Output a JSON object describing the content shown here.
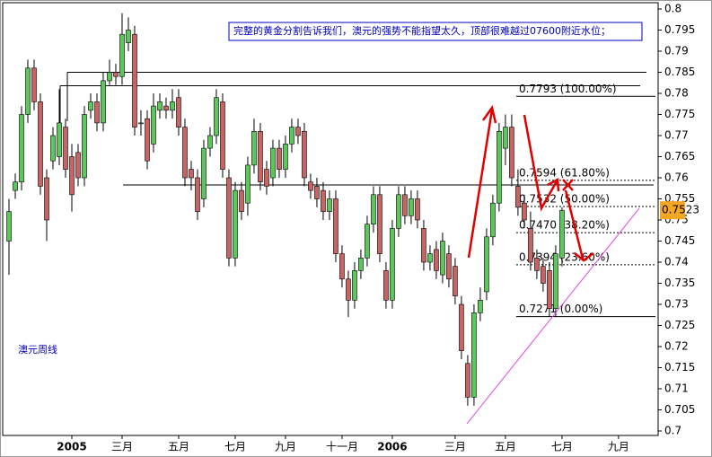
{
  "chart_data": {
    "type": "candlestick",
    "annotation": "完整的黄金分割告诉我们，澳元的强势不能指望太久，顶部很难越过07600附近水位；",
    "label": "澳元周线",
    "up_color": "#5cc85c",
    "down_color": "#c86464",
    "open": [
      0.745,
      0.757,
      0.759,
      0.775,
      0.786,
      0.778,
      0.76,
      0.764,
      0.765,
      0.772,
      0.765,
      0.766,
      0.76,
      0.776,
      0.778,
      0.773,
      0.783,
      0.785,
      0.784,
      0.792,
      0.794,
      0.773,
      0.774,
      0.768,
      0.776,
      0.777,
      0.776,
      0.779,
      0.772,
      0.762,
      0.76,
      0.755,
      0.767,
      0.77,
      0.778,
      0.76,
      0.741,
      0.757,
      0.754,
      0.763,
      0.771,
      0.762,
      0.76,
      0.767,
      0.762,
      0.768,
      0.772,
      0.771,
      0.759,
      0.758,
      0.757,
      0.752,
      0.755,
      0.742,
      0.736,
      0.731,
      0.738,
      0.741,
      0.749,
      0.756,
      0.738,
      0.731,
      0.748,
      0.756,
      0.751,
      0.755,
      0.748,
      0.74,
      0.743,
      0.737,
      0.742,
      0.739,
      0.73,
      0.716,
      0.708,
      0.728,
      0.733,
      0.746,
      0.754,
      0.767,
      0.772,
      0.758,
      0.754,
      0.748,
      0.741,
      0.739,
      0.738,
      0.729,
      0.741
    ],
    "high": [
      0.755,
      0.761,
      0.777,
      0.788,
      0.788,
      0.78,
      0.762,
      0.772,
      0.781,
      0.774,
      0.768,
      0.768,
      0.777,
      0.78,
      0.78,
      0.785,
      0.788,
      0.787,
      0.799,
      0.798,
      0.796,
      0.776,
      0.776,
      0.78,
      0.78,
      0.779,
      0.781,
      0.781,
      0.774,
      0.764,
      0.762,
      0.769,
      0.772,
      0.781,
      0.78,
      0.762,
      0.759,
      0.759,
      0.765,
      0.774,
      0.773,
      0.764,
      0.769,
      0.769,
      0.77,
      0.774,
      0.774,
      0.773,
      0.761,
      0.76,
      0.759,
      0.757,
      0.757,
      0.744,
      0.738,
      0.74,
      0.743,
      0.751,
      0.758,
      0.758,
      0.74,
      0.75,
      0.758,
      0.758,
      0.757,
      0.757,
      0.75,
      0.744,
      0.745,
      0.747,
      0.744,
      0.741,
      0.732,
      0.718,
      0.73,
      0.734,
      0.748,
      0.756,
      0.773,
      0.775,
      0.775,
      0.762,
      0.756,
      0.752,
      0.743,
      0.741,
      0.74,
      0.744,
      0.753
    ],
    "low": [
      0.737,
      0.755,
      0.757,
      0.773,
      0.776,
      0.756,
      0.745,
      0.762,
      0.763,
      0.76,
      0.752,
      0.758,
      0.758,
      0.774,
      0.771,
      0.771,
      0.782,
      0.782,
      0.782,
      0.79,
      0.77,
      0.77,
      0.762,
      0.766,
      0.774,
      0.774,
      0.774,
      0.77,
      0.758,
      0.757,
      0.75,
      0.753,
      0.765,
      0.768,
      0.76,
      0.739,
      0.739,
      0.75,
      0.751,
      0.761,
      0.757,
      0.756,
      0.758,
      0.76,
      0.76,
      0.766,
      0.768,
      0.758,
      0.755,
      0.753,
      0.75,
      0.75,
      0.74,
      0.734,
      0.727,
      0.729,
      0.736,
      0.739,
      0.747,
      0.74,
      0.729,
      0.729,
      0.746,
      0.749,
      0.749,
      0.748,
      0.738,
      0.738,
      0.736,
      0.735,
      0.734,
      0.73,
      0.717,
      0.706,
      0.706,
      0.726,
      0.731,
      0.744,
      0.752,
      0.763,
      0.758,
      0.751,
      0.748,
      0.738,
      0.736,
      0.733,
      0.727,
      0.727,
      0.739
    ],
    "close": [
      0.752,
      0.759,
      0.775,
      0.786,
      0.778,
      0.758,
      0.75,
      0.77,
      0.773,
      0.762,
      0.756,
      0.76,
      0.775,
      0.778,
      0.773,
      0.783,
      0.785,
      0.784,
      0.794,
      0.795,
      0.772,
      0.773,
      0.764,
      0.777,
      0.778,
      0.776,
      0.778,
      0.772,
      0.76,
      0.76,
      0.752,
      0.767,
      0.77,
      0.779,
      0.762,
      0.741,
      0.757,
      0.752,
      0.763,
      0.771,
      0.759,
      0.758,
      0.767,
      0.762,
      0.768,
      0.772,
      0.77,
      0.76,
      0.757,
      0.755,
      0.752,
      0.755,
      0.742,
      0.736,
      0.731,
      0.738,
      0.741,
      0.749,
      0.756,
      0.742,
      0.731,
      0.748,
      0.756,
      0.751,
      0.755,
      0.75,
      0.74,
      0.742,
      0.738,
      0.745,
      0.736,
      0.732,
      0.719,
      0.708,
      0.728,
      0.731,
      0.746,
      0.754,
      0.771,
      0.772,
      0.76,
      0.753,
      0.75,
      0.74,
      0.738,
      0.735,
      0.729,
      0.742,
      0.7523
    ],
    "last_price": 0.7523,
    "xlim": [
      -1,
      103.3
    ],
    "xticks": [
      {
        "value": 10,
        "label": "2005"
      },
      {
        "value": 18,
        "label": "三月"
      },
      {
        "value": 27,
        "label": "五月"
      },
      {
        "value": 36,
        "label": "七月"
      },
      {
        "value": 44,
        "label": "九月"
      },
      {
        "value": 53,
        "label": "十一月"
      },
      {
        "value": 61,
        "label": "2006"
      },
      {
        "value": 71,
        "label": "三月"
      },
      {
        "value": 79,
        "label": "五月"
      },
      {
        "value": 88,
        "label": "七月"
      },
      {
        "value": 97,
        "label": "九月"
      }
    ],
    "ylim": [
      0.7,
      0.8
    ],
    "yticks": [
      0.8,
      0.795,
      0.79,
      0.785,
      0.78,
      0.775,
      0.77,
      0.765,
      0.76,
      0.755,
      0.75,
      0.745,
      0.74,
      0.735,
      0.73,
      0.725,
      0.72,
      0.715,
      0.71,
      0.705,
      0.7
    ],
    "hlines": [
      0.785,
      0.7818,
      0.7583
    ],
    "fib_levels": [
      {
        "value": 0.7793,
        "label": "0.7793 (100.00%)"
      },
      {
        "value": 0.7594,
        "label": "0.7594 (61.80%)"
      },
      {
        "value": 0.7532,
        "label": "0.7532 (50.00%)"
      },
      {
        "value": 0.747,
        "label": "0.7470 (38.20%)"
      },
      {
        "value": 0.7394,
        "label": "0.7394 (23.60%)"
      },
      {
        "value": 0.7271,
        "label": "0.7271 (0.00%)"
      }
    ]
  }
}
